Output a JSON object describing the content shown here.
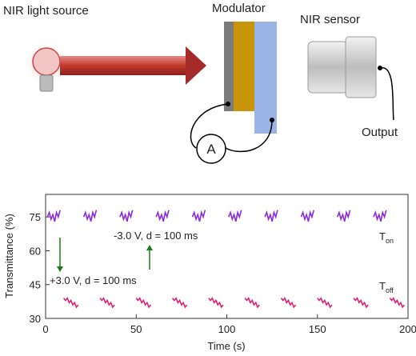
{
  "diagram": {
    "labels": {
      "source": "NIR light source",
      "modulator": "Modulator",
      "sensor": "NIR sensor",
      "output": "Output",
      "ammeter": "A"
    }
  },
  "chart_data": {
    "type": "line",
    "xlabel": "Time (s)",
    "ylabel": "Transmittance (%)",
    "xlim": [
      0,
      200
    ],
    "xticks": [
      0,
      50,
      100,
      150,
      200
    ],
    "ylim": [
      30,
      85
    ],
    "yticks": [
      30,
      45,
      60,
      75
    ],
    "annotations": [
      "-3.0 V, d = 100 ms",
      "+3.0 V, d = 100 ms"
    ],
    "state_labels": [
      {
        "main": "T",
        "sub": "on"
      },
      {
        "main": "T",
        "sub": "off"
      }
    ],
    "series": [
      {
        "color": "#8a2be2",
        "x": [
          1,
          2,
          3,
          4,
          5,
          6,
          7,
          8,
          9,
          21,
          22,
          23,
          24,
          25,
          26,
          27,
          28,
          29,
          41,
          42,
          43,
          44,
          45,
          46,
          47,
          48,
          49,
          61,
          62,
          63,
          64,
          65,
          66,
          67,
          68,
          69,
          81,
          82,
          83,
          84,
          85,
          86,
          87,
          88,
          89,
          101,
          102,
          103,
          104,
          105,
          106,
          107,
          108,
          109,
          121,
          122,
          123,
          124,
          125,
          126,
          127,
          128,
          129,
          141,
          142,
          143,
          144,
          145,
          146,
          147,
          148,
          149,
          161,
          162,
          163,
          164,
          165,
          166,
          167,
          168,
          169,
          181,
          182,
          183,
          184,
          185,
          186,
          187,
          188,
          189
        ],
        "values": [
          75,
          77,
          74,
          76,
          73,
          77,
          75,
          78,
          null,
          75,
          77,
          74,
          76,
          73,
          77,
          75,
          78,
          null,
          75,
          77,
          74,
          76,
          73,
          77,
          75,
          78,
          null,
          75,
          77,
          74,
          76,
          73,
          77,
          75,
          78,
          null,
          75,
          77,
          74,
          76,
          73,
          77,
          75,
          78,
          null,
          75,
          77,
          74,
          76,
          73,
          77,
          75,
          78,
          null,
          75,
          77,
          74,
          76,
          73,
          77,
          75,
          78,
          null,
          75,
          77,
          74,
          76,
          73,
          77,
          75,
          78,
          null,
          75,
          77,
          74,
          76,
          73,
          77,
          75,
          78,
          null,
          75,
          77,
          74,
          76,
          73,
          77,
          75,
          78,
          null
        ]
      },
      {
        "color": "#e0207a",
        "x": [
          10,
          11,
          12,
          13,
          14,
          15,
          16,
          17,
          18,
          19,
          30,
          31,
          32,
          33,
          34,
          35,
          36,
          37,
          38,
          39,
          50,
          51,
          52,
          53,
          54,
          55,
          56,
          57,
          58,
          59,
          70,
          71,
          72,
          73,
          74,
          75,
          76,
          77,
          78,
          79,
          90,
          91,
          92,
          93,
          94,
          95,
          96,
          97,
          98,
          99,
          110,
          111,
          112,
          113,
          114,
          115,
          116,
          117,
          118,
          119,
          130,
          131,
          132,
          133,
          134,
          135,
          136,
          137,
          138,
          139,
          150,
          151,
          152,
          153,
          154,
          155,
          156,
          157,
          158,
          159,
          170,
          171,
          172,
          173,
          174,
          175,
          176,
          177,
          178,
          179,
          190,
          191,
          192,
          193,
          194,
          195,
          196,
          197,
          198,
          199
        ],
        "values": [
          39,
          38,
          39,
          37,
          38,
          36,
          37,
          35,
          36,
          null,
          39,
          38,
          39,
          37,
          38,
          36,
          37,
          35,
          36,
          null,
          39,
          38,
          39,
          37,
          38,
          36,
          37,
          35,
          36,
          null,
          39,
          38,
          39,
          37,
          38,
          36,
          37,
          35,
          36,
          null,
          39,
          38,
          39,
          37,
          38,
          36,
          37,
          35,
          36,
          null,
          39,
          38,
          39,
          37,
          38,
          36,
          37,
          35,
          36,
          null,
          39,
          38,
          39,
          37,
          38,
          36,
          37,
          35,
          36,
          null,
          39,
          38,
          39,
          37,
          38,
          36,
          37,
          35,
          36,
          null,
          39,
          38,
          39,
          37,
          38,
          36,
          37,
          35,
          36,
          null,
          39,
          38,
          39,
          37,
          38,
          36,
          37,
          35,
          36,
          null
        ]
      }
    ]
  }
}
